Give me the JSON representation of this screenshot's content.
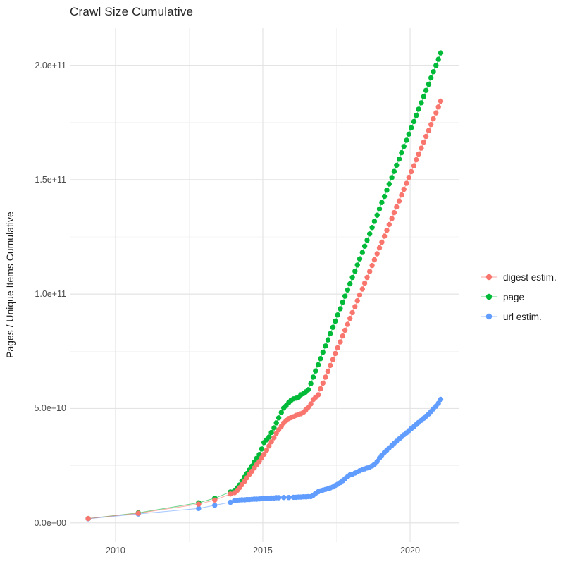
{
  "chart_data": {
    "type": "scatter",
    "title": "Crawl Size Cumulative",
    "xlabel": "",
    "ylabel": "Pages / Unique Items Cumulative",
    "value_unit": "point values stored in billions (1e9) of pages / unique items",
    "grid": true,
    "legend_position": "right",
    "x_axis": {
      "range": [
        2008.47,
        2021.65
      ],
      "major_ticks": [
        {
          "value": 2010,
          "label": "2010"
        },
        {
          "value": 2015,
          "label": "2015"
        },
        {
          "value": 2020,
          "label": "2020"
        }
      ],
      "minor_ticks": [
        2012.5,
        2017.5
      ]
    },
    "y_axis": {
      "range_e9": [
        -8.4,
        216.2
      ],
      "major_ticks": [
        {
          "value_e9": 0,
          "label": "0.0e+00"
        },
        {
          "value_e9": 50,
          "label": "5.0e+10"
        },
        {
          "value_e9": 100,
          "label": "1.0e+11"
        },
        {
          "value_e9": 150,
          "label": "1.5e+11"
        },
        {
          "value_e9": 200,
          "label": "2.0e+11"
        }
      ],
      "minor_ticks_e9": [
        25,
        75,
        125,
        175
      ]
    },
    "colors": {
      "major_grid": "#E4E4E4",
      "minor_grid": "#F0F0F0",
      "tick_text": "#4D4D4D",
      "title_text": "#262626"
    },
    "series": [
      {
        "name": "digest estim.",
        "color": "#F8766D",
        "points": [
          [
            2009.07,
            1.9
          ],
          [
            2010.77,
            4.2
          ],
          [
            2012.82,
            8.2
          ],
          [
            2013.37,
            10.0
          ],
          [
            2013.9,
            12.6
          ],
          [
            2014.04,
            13.2
          ],
          [
            2014.13,
            14.2
          ],
          [
            2014.21,
            15.4
          ],
          [
            2014.29,
            16.7
          ],
          [
            2014.38,
            18.2
          ],
          [
            2014.46,
            19.7
          ],
          [
            2014.54,
            21.2
          ],
          [
            2014.63,
            22.6
          ],
          [
            2014.71,
            24.0
          ],
          [
            2014.79,
            25.4
          ],
          [
            2014.88,
            26.8
          ],
          [
            2014.96,
            28.4
          ],
          [
            2015.04,
            30.0
          ],
          [
            2015.13,
            31.8
          ],
          [
            2015.21,
            33.6
          ],
          [
            2015.29,
            35.4
          ],
          [
            2015.38,
            37.2
          ],
          [
            2015.46,
            39.1
          ],
          [
            2015.54,
            40.7
          ],
          [
            2015.63,
            42.2
          ],
          [
            2015.71,
            43.7
          ],
          [
            2015.79,
            44.7
          ],
          [
            2015.88,
            45.6
          ],
          [
            2015.96,
            46.0
          ],
          [
            2016.04,
            46.4
          ],
          [
            2016.13,
            47.0
          ],
          [
            2016.21,
            47.4
          ],
          [
            2016.29,
            47.7
          ],
          [
            2016.38,
            48.4
          ],
          [
            2016.46,
            49.4
          ],
          [
            2016.54,
            50.5
          ],
          [
            2016.63,
            52.0
          ],
          [
            2016.71,
            53.9
          ],
          [
            2016.79,
            54.9
          ],
          [
            2016.88,
            56.0
          ],
          [
            2016.96,
            58.6
          ],
          [
            2017.04,
            61.1
          ],
          [
            2017.13,
            63.7
          ],
          [
            2017.21,
            66.3
          ],
          [
            2017.29,
            68.8
          ],
          [
            2017.38,
            71.4
          ],
          [
            2017.46,
            74.0
          ],
          [
            2017.54,
            76.5
          ],
          [
            2017.63,
            79.1
          ],
          [
            2017.71,
            81.7
          ],
          [
            2017.79,
            84.2
          ],
          [
            2017.88,
            86.8
          ],
          [
            2017.96,
            89.4
          ],
          [
            2018.04,
            91.9
          ],
          [
            2018.13,
            94.5
          ],
          [
            2018.21,
            97.1
          ],
          [
            2018.29,
            99.6
          ],
          [
            2018.38,
            102.2
          ],
          [
            2018.46,
            104.8
          ],
          [
            2018.54,
            107.3
          ],
          [
            2018.63,
            109.9
          ],
          [
            2018.71,
            112.5
          ],
          [
            2018.79,
            115.0
          ],
          [
            2018.88,
            117.6
          ],
          [
            2018.96,
            120.2
          ],
          [
            2019.04,
            122.7
          ],
          [
            2019.13,
            125.3
          ],
          [
            2019.21,
            127.9
          ],
          [
            2019.29,
            130.4
          ],
          [
            2019.38,
            133.0
          ],
          [
            2019.46,
            135.6
          ],
          [
            2019.54,
            138.1
          ],
          [
            2019.63,
            140.7
          ],
          [
            2019.71,
            143.3
          ],
          [
            2019.79,
            145.8
          ],
          [
            2019.88,
            148.4
          ],
          [
            2019.96,
            151.0
          ],
          [
            2020.04,
            153.5
          ],
          [
            2020.13,
            156.1
          ],
          [
            2020.21,
            158.7
          ],
          [
            2020.29,
            161.2
          ],
          [
            2020.38,
            163.8
          ],
          [
            2020.46,
            166.4
          ],
          [
            2020.54,
            168.9
          ],
          [
            2020.63,
            171.5
          ],
          [
            2020.71,
            174.1
          ],
          [
            2020.79,
            176.6
          ],
          [
            2020.88,
            179.2
          ],
          [
            2020.96,
            181.8
          ],
          [
            2021.04,
            184.3
          ]
        ]
      },
      {
        "name": "page",
        "color": "#00BA38",
        "points": [
          [
            2009.07,
            1.9
          ],
          [
            2010.77,
            4.4
          ],
          [
            2012.82,
            8.8
          ],
          [
            2013.37,
            10.8
          ],
          [
            2013.9,
            13.5
          ],
          [
            2014.04,
            14.2
          ],
          [
            2014.13,
            15.3
          ],
          [
            2014.21,
            16.6
          ],
          [
            2014.29,
            18.3
          ],
          [
            2014.38,
            20.0
          ],
          [
            2014.46,
            21.6
          ],
          [
            2014.54,
            23.1
          ],
          [
            2014.63,
            24.8
          ],
          [
            2014.71,
            26.5
          ],
          [
            2014.79,
            28.2
          ],
          [
            2014.88,
            29.9
          ],
          [
            2014.96,
            32.3
          ],
          [
            2015.04,
            35.1
          ],
          [
            2015.13,
            36.3
          ],
          [
            2015.21,
            37.5
          ],
          [
            2015.29,
            39.5
          ],
          [
            2015.38,
            41.5
          ],
          [
            2015.46,
            43.7
          ],
          [
            2015.54,
            45.9
          ],
          [
            2015.63,
            48.3
          ],
          [
            2015.71,
            50.2
          ],
          [
            2015.79,
            51.2
          ],
          [
            2015.88,
            52.6
          ],
          [
            2015.96,
            53.6
          ],
          [
            2016.04,
            54.2
          ],
          [
            2016.13,
            54.5
          ],
          [
            2016.21,
            54.9
          ],
          [
            2016.29,
            56.0
          ],
          [
            2016.38,
            56.5
          ],
          [
            2016.46,
            57.3
          ],
          [
            2016.54,
            58.2
          ],
          [
            2016.63,
            60.9
          ],
          [
            2016.71,
            63.7
          ],
          [
            2016.79,
            66.4
          ],
          [
            2016.88,
            69.1
          ],
          [
            2016.96,
            71.8
          ],
          [
            2017.04,
            74.6
          ],
          [
            2017.13,
            77.3
          ],
          [
            2017.21,
            80.0
          ],
          [
            2017.29,
            82.7
          ],
          [
            2017.38,
            85.5
          ],
          [
            2017.46,
            88.2
          ],
          [
            2017.54,
            90.9
          ],
          [
            2017.63,
            93.6
          ],
          [
            2017.71,
            96.4
          ],
          [
            2017.79,
            99.1
          ],
          [
            2017.88,
            101.8
          ],
          [
            2017.96,
            104.5
          ],
          [
            2018.04,
            107.3
          ],
          [
            2018.13,
            110.0
          ],
          [
            2018.21,
            112.7
          ],
          [
            2018.29,
            115.4
          ],
          [
            2018.38,
            118.2
          ],
          [
            2018.46,
            120.9
          ],
          [
            2018.54,
            123.6
          ],
          [
            2018.63,
            126.3
          ],
          [
            2018.71,
            129.1
          ],
          [
            2018.79,
            131.8
          ],
          [
            2018.88,
            134.5
          ],
          [
            2018.96,
            137.2
          ],
          [
            2019.04,
            140.0
          ],
          [
            2019.13,
            142.7
          ],
          [
            2019.21,
            145.4
          ],
          [
            2019.29,
            148.1
          ],
          [
            2019.38,
            150.9
          ],
          [
            2019.46,
            153.6
          ],
          [
            2019.54,
            156.3
          ],
          [
            2019.63,
            159.0
          ],
          [
            2019.71,
            161.8
          ],
          [
            2019.79,
            164.5
          ],
          [
            2019.88,
            167.2
          ],
          [
            2019.96,
            169.9
          ],
          [
            2020.04,
            172.7
          ],
          [
            2020.13,
            175.4
          ],
          [
            2020.21,
            178.1
          ],
          [
            2020.29,
            180.8
          ],
          [
            2020.38,
            183.6
          ],
          [
            2020.46,
            186.3
          ],
          [
            2020.54,
            189.0
          ],
          [
            2020.63,
            191.7
          ],
          [
            2020.71,
            194.5
          ],
          [
            2020.79,
            197.2
          ],
          [
            2020.88,
            199.9
          ],
          [
            2020.96,
            202.6
          ],
          [
            2021.04,
            205.4
          ]
        ]
      },
      {
        "name": "url estim.",
        "color": "#619CFF",
        "points": [
          [
            2009.07,
            1.8
          ],
          [
            2010.77,
            3.9
          ],
          [
            2012.82,
            6.3
          ],
          [
            2013.37,
            7.7
          ],
          [
            2013.9,
            9.0
          ],
          [
            2014.04,
            9.8
          ],
          [
            2014.13,
            9.9
          ],
          [
            2014.21,
            10.0
          ],
          [
            2014.29,
            10.1
          ],
          [
            2014.38,
            10.1
          ],
          [
            2014.46,
            10.2
          ],
          [
            2014.54,
            10.2
          ],
          [
            2014.63,
            10.3
          ],
          [
            2014.71,
            10.4
          ],
          [
            2014.79,
            10.4
          ],
          [
            2014.88,
            10.5
          ],
          [
            2014.96,
            10.6
          ],
          [
            2015.04,
            10.7
          ],
          [
            2015.13,
            10.8
          ],
          [
            2015.21,
            10.8
          ],
          [
            2015.29,
            10.9
          ],
          [
            2015.38,
            10.9
          ],
          [
            2015.46,
            11.0
          ],
          [
            2015.54,
            11.0
          ],
          [
            2015.71,
            11.1
          ],
          [
            2015.88,
            11.1
          ],
          [
            2016.04,
            11.2
          ],
          [
            2016.13,
            11.2
          ],
          [
            2016.21,
            11.3
          ],
          [
            2016.29,
            11.3
          ],
          [
            2016.38,
            11.4
          ],
          [
            2016.46,
            11.4
          ],
          [
            2016.54,
            11.5
          ],
          [
            2016.63,
            11.5
          ],
          [
            2016.71,
            12.1
          ],
          [
            2016.79,
            12.9
          ],
          [
            2016.88,
            13.6
          ],
          [
            2016.96,
            14.0
          ],
          [
            2017.04,
            14.3
          ],
          [
            2017.13,
            14.6
          ],
          [
            2017.21,
            14.9
          ],
          [
            2017.29,
            15.3
          ],
          [
            2017.38,
            15.7
          ],
          [
            2017.46,
            16.3
          ],
          [
            2017.54,
            16.9
          ],
          [
            2017.63,
            17.6
          ],
          [
            2017.71,
            18.4
          ],
          [
            2017.79,
            19.3
          ],
          [
            2017.88,
            20.2
          ],
          [
            2017.96,
            21.0
          ],
          [
            2018.04,
            21.3
          ],
          [
            2018.13,
            21.8
          ],
          [
            2018.21,
            22.3
          ],
          [
            2018.29,
            22.8
          ],
          [
            2018.38,
            23.2
          ],
          [
            2018.46,
            23.6
          ],
          [
            2018.54,
            24.0
          ],
          [
            2018.63,
            24.4
          ],
          [
            2018.71,
            24.9
          ],
          [
            2018.79,
            25.6
          ],
          [
            2018.88,
            26.8
          ],
          [
            2018.96,
            28.3
          ],
          [
            2019.04,
            29.6
          ],
          [
            2019.13,
            30.8
          ],
          [
            2019.21,
            31.8
          ],
          [
            2019.29,
            32.8
          ],
          [
            2019.38,
            33.8
          ],
          [
            2019.46,
            34.8
          ],
          [
            2019.54,
            35.7
          ],
          [
            2019.63,
            36.7
          ],
          [
            2019.71,
            37.6
          ],
          [
            2019.79,
            38.5
          ],
          [
            2019.88,
            39.4
          ],
          [
            2019.96,
            40.3
          ],
          [
            2020.04,
            41.2
          ],
          [
            2020.13,
            42.1
          ],
          [
            2020.21,
            43.0
          ],
          [
            2020.29,
            43.9
          ],
          [
            2020.38,
            44.8
          ],
          [
            2020.46,
            45.7
          ],
          [
            2020.54,
            46.6
          ],
          [
            2020.63,
            47.6
          ],
          [
            2020.71,
            48.7
          ],
          [
            2020.79,
            49.8
          ],
          [
            2020.88,
            51.0
          ],
          [
            2020.96,
            52.3
          ],
          [
            2021.04,
            54.0
          ]
        ]
      }
    ]
  }
}
